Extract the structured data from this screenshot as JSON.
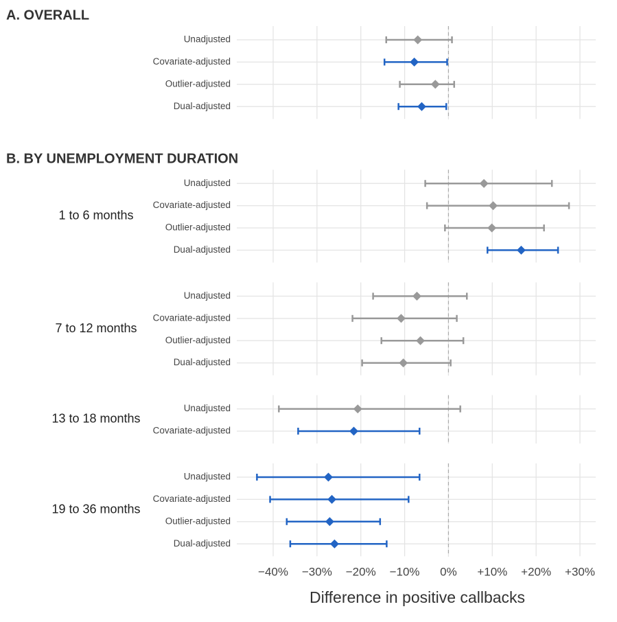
{
  "chart_data": {
    "type": "forest",
    "xlabel": "Difference in positive callbacks",
    "xlim": [
      -48.3,
      33.6
    ],
    "xticks": [
      {
        "value": -40,
        "label": "−40%"
      },
      {
        "value": -30,
        "label": "−30%"
      },
      {
        "value": -20,
        "label": "−20%"
      },
      {
        "value": -10,
        "label": "−10%"
      },
      {
        "value": 0,
        "label": "0%"
      },
      {
        "value": 10,
        "label": "+10%"
      },
      {
        "value": 20,
        "label": "+20%"
      },
      {
        "value": 30,
        "label": "+30%"
      }
    ],
    "grid": true,
    "reference_line": 0,
    "sections": [
      {
        "title": "A. OVERALL",
        "groups": [
          {
            "rows": [
              {
                "label": "Unadjusted",
                "value": -7.0,
                "low": -14.2,
                "high": 0.8,
                "color": "#999999"
              },
              {
                "label": "Covariate-adjusted",
                "value": -7.8,
                "low": -14.6,
                "high": -0.3,
                "color": "#2264c4"
              },
              {
                "label": "Outlier-adjusted",
                "value": -3.0,
                "low": -11.1,
                "high": 1.3,
                "color": "#999999"
              },
              {
                "label": "Dual-adjusted",
                "value": -6.1,
                "low": -11.4,
                "high": -0.5,
                "color": "#2264c4"
              }
            ]
          }
        ]
      },
      {
        "title": "B. BY UNEMPLOYMENT DURATION",
        "groups": [
          {
            "label": "1 to 6 months",
            "rows": [
              {
                "label": "Unadjusted",
                "value": 8.1,
                "low": -5.3,
                "high": 23.6,
                "color": "#999999"
              },
              {
                "label": "Covariate-adjusted",
                "value": 10.2,
                "low": -4.9,
                "high": 27.5,
                "color": "#999999"
              },
              {
                "label": "Outlier-adjusted",
                "value": 9.9,
                "low": -0.8,
                "high": 21.8,
                "color": "#999999"
              },
              {
                "label": "Dual-adjusted",
                "value": 16.6,
                "low": 8.9,
                "high": 25.0,
                "color": "#2264c4"
              }
            ]
          },
          {
            "label": "7 to 12 months",
            "rows": [
              {
                "label": "Unadjusted",
                "value": -7.2,
                "low": -17.2,
                "high": 4.2,
                "color": "#999999"
              },
              {
                "label": "Covariate-adjusted",
                "value": -10.8,
                "low": -21.9,
                "high": 1.9,
                "color": "#999999"
              },
              {
                "label": "Outlier-adjusted",
                "value": -6.4,
                "low": -15.3,
                "high": 3.4,
                "color": "#999999"
              },
              {
                "label": "Dual-adjusted",
                "value": -10.3,
                "low": -19.7,
                "high": 0.5,
                "color": "#999999"
              }
            ]
          },
          {
            "label": "13 to 18 months",
            "rows": [
              {
                "label": "Unadjusted",
                "value": -20.7,
                "low": -38.7,
                "high": 2.7,
                "color": "#999999"
              },
              {
                "label": "Covariate-adjusted",
                "value": -21.6,
                "low": -34.3,
                "high": -6.6,
                "color": "#2264c4"
              }
            ]
          },
          {
            "label": "19 to 36 months",
            "rows": [
              {
                "label": "Unadjusted",
                "value": -27.4,
                "low": -43.7,
                "high": -6.6,
                "color": "#2264c4"
              },
              {
                "label": "Covariate-adjusted",
                "value": -26.6,
                "low": -40.7,
                "high": -9.1,
                "color": "#2264c4"
              },
              {
                "label": "Outlier-adjusted",
                "value": -27.1,
                "low": -36.9,
                "high": -15.6,
                "color": "#2264c4"
              },
              {
                "label": "Dual-adjusted",
                "value": -26.0,
                "low": -36.1,
                "high": -14.1,
                "color": "#2264c4"
              }
            ]
          }
        ]
      }
    ]
  }
}
